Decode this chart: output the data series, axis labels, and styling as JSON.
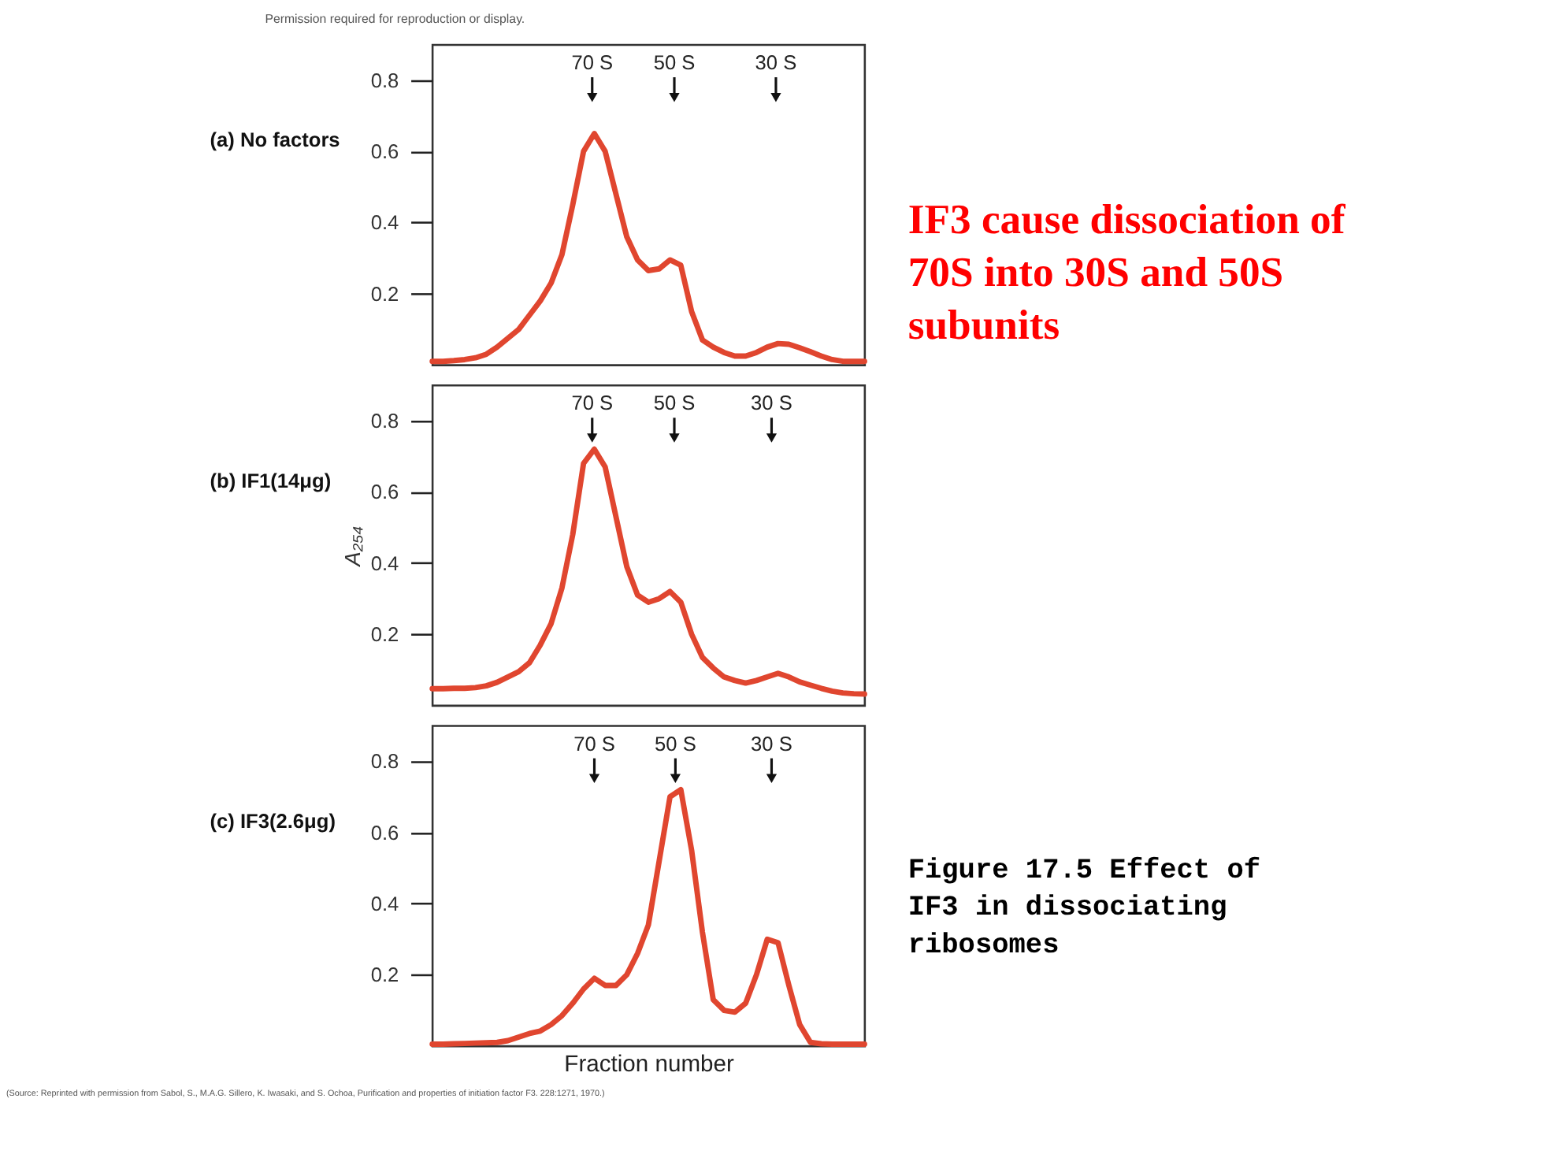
{
  "chart_data": [
    {
      "type": "line",
      "title": "(a)  No factors",
      "ylim": [
        0,
        0.9
      ],
      "yticks": [
        0.2,
        0.4,
        0.6,
        0.8
      ],
      "tick_labels": "y",
      "grid": false,
      "marker": "none",
      "line_style": "solid",
      "categories": [
        null,
        null,
        null,
        null,
        null,
        null,
        null,
        null,
        null,
        null,
        null,
        null,
        null,
        null,
        null,
        null,
        null,
        null,
        null,
        null,
        null,
        null,
        null,
        null,
        null,
        null,
        null,
        null,
        null,
        null,
        null,
        null,
        null,
        null,
        null,
        null,
        null,
        null,
        null,
        null,
        null
      ],
      "series": [
        {
          "color": "#e0462f",
          "values": [
            0.01,
            0.01,
            0.012,
            0.015,
            0.02,
            0.03,
            0.05,
            0.075,
            0.1,
            0.14,
            0.18,
            0.23,
            0.31,
            0.45,
            0.6,
            0.65,
            0.6,
            0.48,
            0.36,
            0.295,
            0.265,
            0.27,
            0.295,
            0.28,
            0.15,
            0.07,
            0.05,
            0.035,
            0.025,
            0.025,
            0.035,
            0.05,
            0.06,
            0.058,
            0.048,
            0.037,
            0.025,
            0.015,
            0.01,
            0.01,
            0.01
          ]
        }
      ],
      "annotations": [
        "70 S",
        "50 S",
        "30 S",
        "Permission required for reproduction or display.",
        "IF3 cause dissociation of 70S into 30S and 50S subunits"
      ]
    },
    {
      "type": "line",
      "title": "(b)  IF1(14μg)",
      "ylabel": "A₂₅₄",
      "ylim": [
        0,
        0.9
      ],
      "yticks": [
        0.2,
        0.4,
        0.6,
        0.8
      ],
      "tick_labels": "y",
      "grid": false,
      "marker": "none",
      "line_style": "solid",
      "categories": [
        null,
        null,
        null,
        null,
        null,
        null,
        null,
        null,
        null,
        null,
        null,
        null,
        null,
        null,
        null,
        null,
        null,
        null,
        null,
        null,
        null,
        null,
        null,
        null,
        null,
        null,
        null,
        null,
        null,
        null,
        null,
        null,
        null,
        null,
        null,
        null,
        null,
        null,
        null,
        null,
        null
      ],
      "series": [
        {
          "color": "#e0462f",
          "values": [
            0.047,
            0.047,
            0.048,
            0.048,
            0.05,
            0.055,
            0.065,
            0.08,
            0.095,
            0.12,
            0.17,
            0.23,
            0.33,
            0.48,
            0.68,
            0.72,
            0.67,
            0.53,
            0.39,
            0.31,
            0.29,
            0.3,
            0.32,
            0.29,
            0.2,
            0.135,
            0.105,
            0.08,
            0.07,
            0.063,
            0.07,
            0.08,
            0.09,
            0.08,
            0.066,
            0.057,
            0.048,
            0.04,
            0.035,
            0.033,
            0.032
          ]
        }
      ],
      "annotations": [
        "70 S",
        "50 S",
        "30 S"
      ]
    },
    {
      "type": "line",
      "title": "(c)  IF3(2.6μg)",
      "xlabel": "Fraction number",
      "ylim": [
        0,
        0.9
      ],
      "yticks": [
        0.2,
        0.4,
        0.6,
        0.8
      ],
      "tick_labels": "y",
      "grid": false,
      "marker": "none",
      "line_style": "solid",
      "categories": [
        null,
        null,
        null,
        null,
        null,
        null,
        null,
        null,
        null,
        null,
        null,
        null,
        null,
        null,
        null,
        null,
        null,
        null,
        null,
        null,
        null,
        null,
        null,
        null,
        null,
        null,
        null,
        null,
        null,
        null,
        null,
        null,
        null,
        null,
        null,
        null,
        null,
        null,
        null,
        null,
        null
      ],
      "series": [
        {
          "color": "#e0462f",
          "values": [
            0.005,
            0.005,
            0.006,
            0.007,
            0.008,
            0.009,
            0.01,
            0.015,
            0.025,
            0.035,
            0.042,
            0.06,
            0.085,
            0.12,
            0.16,
            0.19,
            0.17,
            0.17,
            0.2,
            0.26,
            0.34,
            0.52,
            0.7,
            0.72,
            0.55,
            0.32,
            0.13,
            0.1,
            0.095,
            0.12,
            0.2,
            0.3,
            0.29,
            0.17,
            0.06,
            0.01,
            0.006,
            0.005,
            0.005,
            0.005,
            0.005
          ]
        }
      ],
      "annotations": [
        "70 S",
        "50 S",
        "30 S",
        "Figure 17.5  Effect of IF3 in dissociating ribosomes",
        "(Source: Reprinted with permission from Sabol, S., M.A.G. Sillero, K. Iwasaki, and S. Ochoa, Purification and properties of initiation factor F3. 228:1271, 1970.)"
      ]
    }
  ]
}
